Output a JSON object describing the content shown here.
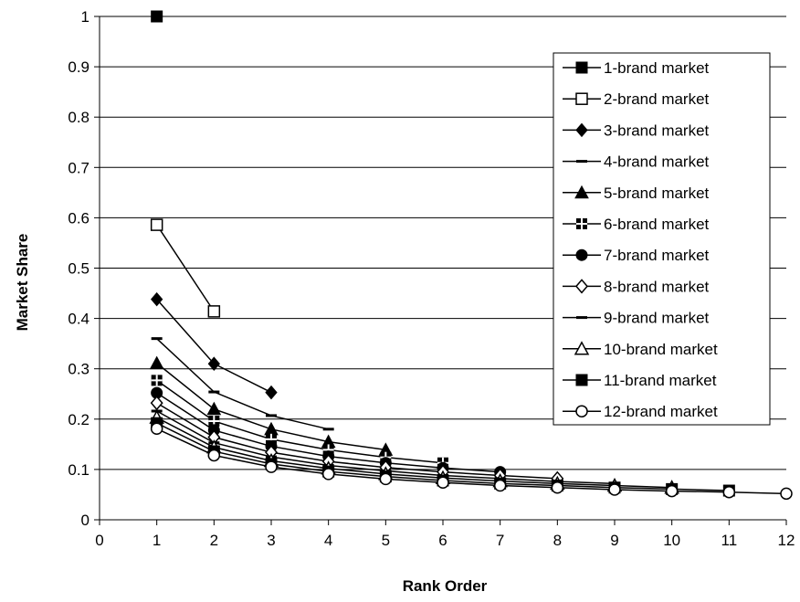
{
  "chart_data": {
    "type": "line",
    "title": "",
    "xlabel": "Rank Order",
    "ylabel": "Market Share",
    "xlim": [
      0,
      12
    ],
    "ylim": [
      0,
      1
    ],
    "x_ticks": [
      "0",
      "1",
      "2",
      "3",
      "4",
      "5",
      "6",
      "7",
      "8",
      "9",
      "10",
      "11",
      "12"
    ],
    "y_ticks": [
      "0",
      "0.1",
      "0.2",
      "0.3",
      "0.4",
      "0.5",
      "0.6",
      "0.7",
      "0.8",
      "0.9",
      "1"
    ],
    "grid": "horizontal",
    "legend_position": "right",
    "series": [
      {
        "name": "1-brand market",
        "marker": "square-filled",
        "values": [
          [
            1,
            1.0
          ]
        ]
      },
      {
        "name": "2-brand market",
        "marker": "square-open",
        "values": [
          [
            1,
            0.586
          ],
          [
            2,
            0.414
          ]
        ]
      },
      {
        "name": "3-brand market",
        "marker": "diamond-filled",
        "values": [
          [
            1,
            0.438
          ],
          [
            2,
            0.31
          ],
          [
            3,
            0.253
          ]
        ]
      },
      {
        "name": "4-brand market",
        "marker": "dash",
        "values": [
          [
            1,
            0.36
          ],
          [
            2,
            0.254
          ],
          [
            3,
            0.207
          ],
          [
            4,
            0.18
          ]
        ]
      },
      {
        "name": "5-brand market",
        "marker": "triangle-filled",
        "values": [
          [
            1,
            0.311
          ],
          [
            2,
            0.22
          ],
          [
            3,
            0.18
          ],
          [
            4,
            0.155
          ],
          [
            5,
            0.139
          ]
        ]
      },
      {
        "name": "6-brand market",
        "marker": "cross-square",
        "values": [
          [
            1,
            0.277
          ],
          [
            2,
            0.196
          ],
          [
            3,
            0.16
          ],
          [
            4,
            0.139
          ],
          [
            5,
            0.124
          ],
          [
            6,
            0.113
          ]
        ]
      },
      {
        "name": "7-brand market",
        "marker": "circle-filled",
        "values": [
          [
            1,
            0.252
          ],
          [
            2,
            0.178
          ],
          [
            3,
            0.146
          ],
          [
            4,
            0.126
          ],
          [
            5,
            0.113
          ],
          [
            6,
            0.103
          ],
          [
            7,
            0.095
          ]
        ]
      },
      {
        "name": "8-brand market",
        "marker": "diamond-open",
        "values": [
          [
            1,
            0.232
          ],
          [
            2,
            0.164
          ],
          [
            3,
            0.134
          ],
          [
            4,
            0.116
          ],
          [
            5,
            0.104
          ],
          [
            6,
            0.095
          ],
          [
            7,
            0.088
          ],
          [
            8,
            0.082
          ]
        ]
      },
      {
        "name": "9-brand market",
        "marker": "dash",
        "values": [
          [
            1,
            0.216
          ],
          [
            2,
            0.153
          ],
          [
            3,
            0.125
          ],
          [
            4,
            0.108
          ],
          [
            5,
            0.097
          ],
          [
            6,
            0.088
          ],
          [
            7,
            0.082
          ],
          [
            8,
            0.076
          ],
          [
            9,
            0.072
          ]
        ]
      },
      {
        "name": "10-brand market",
        "marker": "triangle-open",
        "values": [
          [
            1,
            0.203
          ],
          [
            2,
            0.144
          ],
          [
            3,
            0.117
          ],
          [
            4,
            0.102
          ],
          [
            5,
            0.091
          ],
          [
            6,
            0.083
          ],
          [
            7,
            0.077
          ],
          [
            8,
            0.072
          ],
          [
            9,
            0.068
          ],
          [
            10,
            0.064
          ]
        ]
      },
      {
        "name": "11-brand market",
        "marker": "square-filled",
        "values": [
          [
            1,
            0.192
          ],
          [
            2,
            0.136
          ],
          [
            3,
            0.111
          ],
          [
            4,
            0.096
          ],
          [
            5,
            0.086
          ],
          [
            6,
            0.078
          ],
          [
            7,
            0.072
          ],
          [
            8,
            0.068
          ],
          [
            9,
            0.064
          ],
          [
            10,
            0.061
          ],
          [
            11,
            0.058
          ]
        ]
      },
      {
        "name": "12-brand market",
        "marker": "circle-open",
        "values": [
          [
            1,
            0.181
          ],
          [
            2,
            0.128
          ],
          [
            3,
            0.105
          ],
          [
            4,
            0.091
          ],
          [
            5,
            0.081
          ],
          [
            6,
            0.074
          ],
          [
            7,
            0.068
          ],
          [
            8,
            0.064
          ],
          [
            9,
            0.06
          ],
          [
            10,
            0.057
          ],
          [
            11,
            0.055
          ],
          [
            12,
            0.052
          ]
        ]
      }
    ]
  }
}
